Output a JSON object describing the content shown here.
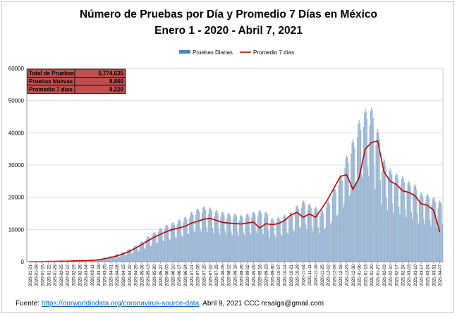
{
  "title": {
    "line1": "Número de Pruebas por Día  y Promedio 7 Días en México",
    "line2": "Enero 1 - 2020 - Abril 7, 2021"
  },
  "summary_table": {
    "rows": [
      {
        "label": "Total de Pruebas",
        "value": "5,774,635"
      },
      {
        "label": "Pruebas Nuevas",
        "value": "8,860"
      },
      {
        "label": "Promedio 7 días",
        "value": "9,229"
      }
    ],
    "fill_color": "#c0504d"
  },
  "source": {
    "prefix": "Fuente: ",
    "link": "https://ourworldindata.org/coronavirus-source-data",
    "suffix": ",  Abril 9,  2021    CCC  resalga@gmail.com"
  },
  "chart_data": {
    "type": "bar+line",
    "x_labels": [
      "2020-01-01",
      "2020-01-08",
      "2020-01-15",
      "2020-01-22",
      "2020-01-29",
      "2020-02-05",
      "2020-02-12",
      "2020-02-19",
      "2020-02-26",
      "2020-03-04",
      "2020-03-11",
      "2020-03-18",
      "2020-03-25",
      "2020-04-01",
      "2020-04-08",
      "2020-04-15",
      "2020-04-22",
      "2020-04-29",
      "2020-05-06",
      "2020-05-13",
      "2020-05-20",
      "2020-05-27",
      "2020-06-03",
      "2020-06-10",
      "2020-06-17",
      "2020-06-24",
      "2020-07-01",
      "2020-07-08",
      "2020-07-15",
      "2020-07-22",
      "2020-07-29",
      "2020-08-05",
      "2020-08-12",
      "2020-08-19",
      "2020-08-26",
      "2020-09-02",
      "2020-09-09",
      "2020-09-16",
      "2020-09-23",
      "2020-09-30",
      "2020-10-07",
      "2020-10-14",
      "2020-10-21",
      "2020-10-28",
      "2020-11-04",
      "2020-11-11",
      "2020-11-18",
      "2020-11-25",
      "2020-12-02",
      "2020-12-09",
      "2020-12-16",
      "2020-12-23",
      "2020-12-30",
      "2021-01-06",
      "2021-01-13",
      "2021-01-20",
      "2021-01-27",
      "2021-02-03",
      "2021-02-10",
      "2021-02-17",
      "2021-02-24",
      "2021-03-03",
      "2021-03-10",
      "2021-03-17",
      "2021-03-24",
      "2021-03-31",
      "2021-04-07"
    ],
    "y_ticks": [
      0,
      10000,
      20000,
      30000,
      40000,
      50000,
      60000
    ],
    "ylim": [
      0,
      60000
    ],
    "legend_position": "top-center",
    "grid": true,
    "series": [
      {
        "name": "Pruebas Diarias",
        "kind": "bar",
        "color": "#4f81bd",
        "weekly_peak": [
          100,
          100,
          100,
          200,
          200,
          300,
          300,
          400,
          400,
          500,
          600,
          800,
          1200,
          1700,
          2300,
          3000,
          3900,
          5000,
          6300,
          7800,
          9200,
          10500,
          11500,
          12200,
          13200,
          14000,
          15500,
          16500,
          17200,
          16800,
          16000,
          15500,
          15200,
          15000,
          14500,
          15000,
          15500,
          16000,
          15500,
          13500,
          13800,
          14500,
          15500,
          17500,
          19000,
          18000,
          17000,
          16000,
          19000,
          23000,
          27000,
          33000,
          38000,
          44000,
          47500,
          48000,
          41000,
          32000,
          29000,
          27500,
          26500,
          25000,
          24000,
          21500,
          21000,
          20000,
          19000
        ]
      },
      {
        "name": "Promedio 7 días",
        "kind": "line",
        "color": "#c00000",
        "values": [
          0,
          0,
          0,
          100,
          100,
          150,
          150,
          250,
          300,
          350,
          400,
          550,
          900,
          1300,
          1800,
          2400,
          3200,
          4200,
          5300,
          6500,
          7600,
          8500,
          9300,
          10000,
          10500,
          11000,
          12000,
          12500,
          13200,
          13500,
          12800,
          12200,
          12000,
          11800,
          11700,
          12000,
          12300,
          10500,
          11800,
          11500,
          11800,
          12800,
          14500,
          15300,
          13800,
          14800,
          13800,
          16500,
          19500,
          23000,
          26500,
          27000,
          22500,
          26000,
          35000,
          37000,
          37500,
          28000,
          25000,
          24000,
          22000,
          21500,
          20500,
          18000,
          17500,
          16000,
          9229
        ]
      }
    ]
  }
}
